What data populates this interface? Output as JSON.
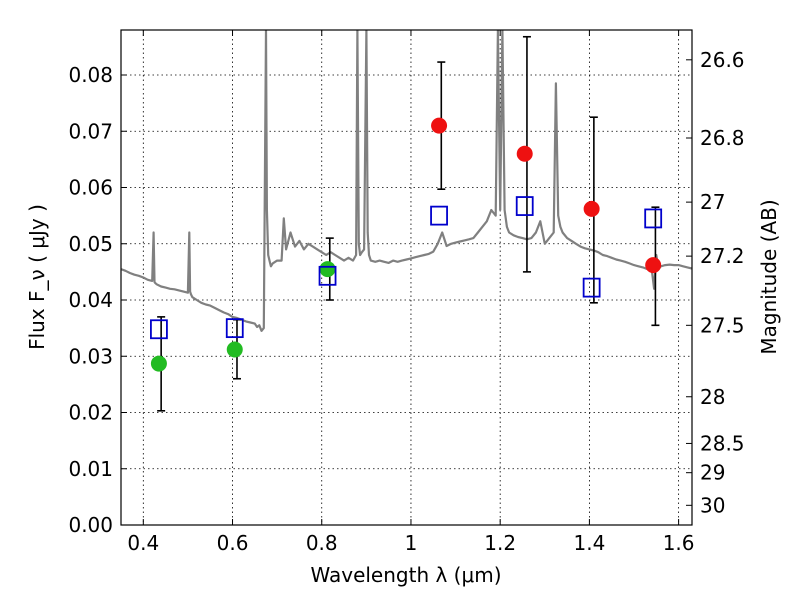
{
  "chart_data": {
    "type": "scatter",
    "xlabel": "Wavelength  λ (μm)",
    "ylabel": "Flux  F_ν  ( μJy )",
    "ylabel_right": "Magnitude (AB)",
    "xlim": [
      0.35,
      1.63
    ],
    "ylim": [
      0.0,
      0.088
    ],
    "grid": true,
    "x_ticks": [
      0.4,
      0.6,
      0.8,
      1.0,
      1.2,
      1.4,
      1.6
    ],
    "x_tick_labels": [
      "0.4",
      "0.6",
      "0.8",
      "1",
      "1.2",
      "1.4",
      "1.6"
    ],
    "y_ticks": [
      0.0,
      0.01,
      0.02,
      0.03,
      0.04,
      0.05,
      0.06,
      0.07,
      0.08
    ],
    "y_tick_labels": [
      "0.00",
      "0.01",
      "0.02",
      "0.03",
      "0.04",
      "0.05",
      "0.06",
      "0.07",
      "0.08"
    ],
    "right_ticks": [
      {
        "flux": 0.0827,
        "label": "26.6"
      },
      {
        "flux": 0.0688,
        "label": "26.8"
      },
      {
        "flux": 0.0574,
        "label": "27"
      },
      {
        "flux": 0.0478,
        "label": "27.2"
      },
      {
        "flux": 0.0355,
        "label": "27.5"
      },
      {
        "flux": 0.0228,
        "label": "28"
      },
      {
        "flux": 0.0145,
        "label": "28.5"
      },
      {
        "flux": 0.0093,
        "label": "29"
      },
      {
        "flux": 0.0035,
        "label": "30"
      }
    ],
    "series": [
      {
        "kind": "spectrum-line",
        "color": "#808080",
        "x": [
          0.35,
          0.36,
          0.37,
          0.38,
          0.39,
          0.4,
          0.41,
          0.42,
          0.423,
          0.425,
          0.427,
          0.43,
          0.44,
          0.45,
          0.46,
          0.47,
          0.48,
          0.49,
          0.5,
          0.503,
          0.505,
          0.507,
          0.51,
          0.52,
          0.53,
          0.54,
          0.55,
          0.56,
          0.57,
          0.58,
          0.59,
          0.6,
          0.61,
          0.62,
          0.63,
          0.64,
          0.65,
          0.655,
          0.66,
          0.665,
          0.67,
          0.675,
          0.677,
          0.68,
          0.683,
          0.686,
          0.69,
          0.7,
          0.71,
          0.715,
          0.72,
          0.73,
          0.74,
          0.75,
          0.76,
          0.77,
          0.78,
          0.79,
          0.8,
          0.81,
          0.82,
          0.83,
          0.84,
          0.85,
          0.86,
          0.87,
          0.877,
          0.88,
          0.883,
          0.886,
          0.89,
          0.895,
          0.9,
          0.903,
          0.906,
          0.91,
          0.92,
          0.93,
          0.94,
          0.95,
          0.96,
          0.97,
          0.98,
          0.99,
          1.0,
          1.01,
          1.02,
          1.03,
          1.04,
          1.05,
          1.06,
          1.07,
          1.08,
          1.09,
          1.1,
          1.11,
          1.12,
          1.13,
          1.14,
          1.15,
          1.16,
          1.17,
          1.18,
          1.19,
          1.195,
          1.2,
          1.205,
          1.21,
          1.215,
          1.22,
          1.23,
          1.24,
          1.25,
          1.26,
          1.27,
          1.28,
          1.29,
          1.3,
          1.31,
          1.32,
          1.325,
          1.33,
          1.335,
          1.34,
          1.35,
          1.36,
          1.37,
          1.38,
          1.39,
          1.4,
          1.41,
          1.42,
          1.43,
          1.44,
          1.45,
          1.46,
          1.47,
          1.48,
          1.49,
          1.5,
          1.51,
          1.52,
          1.53,
          1.54,
          1.545,
          1.55,
          1.555,
          1.56,
          1.57,
          1.58,
          1.59,
          1.6,
          1.61,
          1.62,
          1.63
        ],
        "y": [
          0.0455,
          0.0452,
          0.0448,
          0.0445,
          0.0443,
          0.044,
          0.0436,
          0.0434,
          0.052,
          0.0432,
          0.043,
          0.0428,
          0.0424,
          0.0422,
          0.042,
          0.0419,
          0.0417,
          0.0415,
          0.0413,
          0.052,
          0.0415,
          0.041,
          0.0405,
          0.04,
          0.0395,
          0.0392,
          0.039,
          0.0386,
          0.0382,
          0.0378,
          0.0375,
          0.037,
          0.0368,
          0.0365,
          0.0362,
          0.036,
          0.0358,
          0.0352,
          0.0355,
          0.0345,
          0.035,
          0.088,
          0.056,
          0.048,
          0.047,
          0.046,
          0.0465,
          0.047,
          0.047,
          0.0545,
          0.049,
          0.052,
          0.0495,
          0.0505,
          0.049,
          0.05,
          0.0495,
          0.049,
          0.0485,
          0.048,
          0.0485,
          0.048,
          0.0475,
          0.047,
          0.0475,
          0.047,
          0.048,
          0.088,
          0.05,
          0.048,
          0.0485,
          0.049,
          0.088,
          0.052,
          0.048,
          0.047,
          0.0468,
          0.047,
          0.0468,
          0.0466,
          0.047,
          0.0468,
          0.047,
          0.0472,
          0.0474,
          0.0476,
          0.0478,
          0.048,
          0.0482,
          0.0486,
          0.05,
          0.052,
          0.0496,
          0.05,
          0.0502,
          0.0504,
          0.0506,
          0.0508,
          0.051,
          0.052,
          0.053,
          0.054,
          0.056,
          0.055,
          0.088,
          0.056,
          0.088,
          0.056,
          0.053,
          0.052,
          0.0515,
          0.0512,
          0.051,
          0.0508,
          0.051,
          0.052,
          0.054,
          0.05,
          0.051,
          0.052,
          0.0785,
          0.055,
          0.053,
          0.052,
          0.051,
          0.0505,
          0.05,
          0.0495,
          0.0492,
          0.049,
          0.0488,
          0.0485,
          0.048,
          0.0478,
          0.0475,
          0.0472,
          0.047,
          0.0468,
          0.0465,
          0.0462,
          0.046,
          0.0458,
          0.0455,
          0.0452,
          0.042,
          0.048,
          0.0455,
          0.046,
          0.0462,
          0.0463,
          0.0462,
          0.0462,
          0.046,
          0.0458,
          0.0456
        ]
      },
      {
        "kind": "measurement-green",
        "color": "#22bb22",
        "points": [
          {
            "x": 0.435,
            "y": 0.0287
          },
          {
            "x": 0.605,
            "y": 0.0312
          },
          {
            "x": 0.813,
            "y": 0.0455
          }
        ]
      },
      {
        "kind": "measurement-red",
        "color": "#ee1111",
        "points": [
          {
            "x": 1.063,
            "y": 0.071
          },
          {
            "x": 1.255,
            "y": 0.066
          },
          {
            "x": 1.405,
            "y": 0.0562
          },
          {
            "x": 1.543,
            "y": 0.0462
          }
        ]
      },
      {
        "kind": "model-squares",
        "color": "#0000cc",
        "points": [
          {
            "x": 0.435,
            "y": 0.0348
          },
          {
            "x": 0.605,
            "y": 0.035
          },
          {
            "x": 0.813,
            "y": 0.0443
          },
          {
            "x": 1.063,
            "y": 0.055
          },
          {
            "x": 1.255,
            "y": 0.0567
          },
          {
            "x": 1.405,
            "y": 0.0422
          },
          {
            "x": 1.543,
            "y": 0.0545
          }
        ]
      }
    ],
    "error_bars": [
      {
        "x": 0.44,
        "low": 0.0203,
        "high": 0.037
      },
      {
        "x": 0.61,
        "low": 0.026,
        "high": 0.0365
      },
      {
        "x": 0.818,
        "low": 0.04,
        "high": 0.051
      },
      {
        "x": 1.068,
        "low": 0.0597,
        "high": 0.0823
      },
      {
        "x": 1.26,
        "low": 0.045,
        "high": 0.0868
      },
      {
        "x": 1.41,
        "low": 0.0395,
        "high": 0.0725
      },
      {
        "x": 1.548,
        "low": 0.0355,
        "high": 0.0565
      }
    ]
  }
}
